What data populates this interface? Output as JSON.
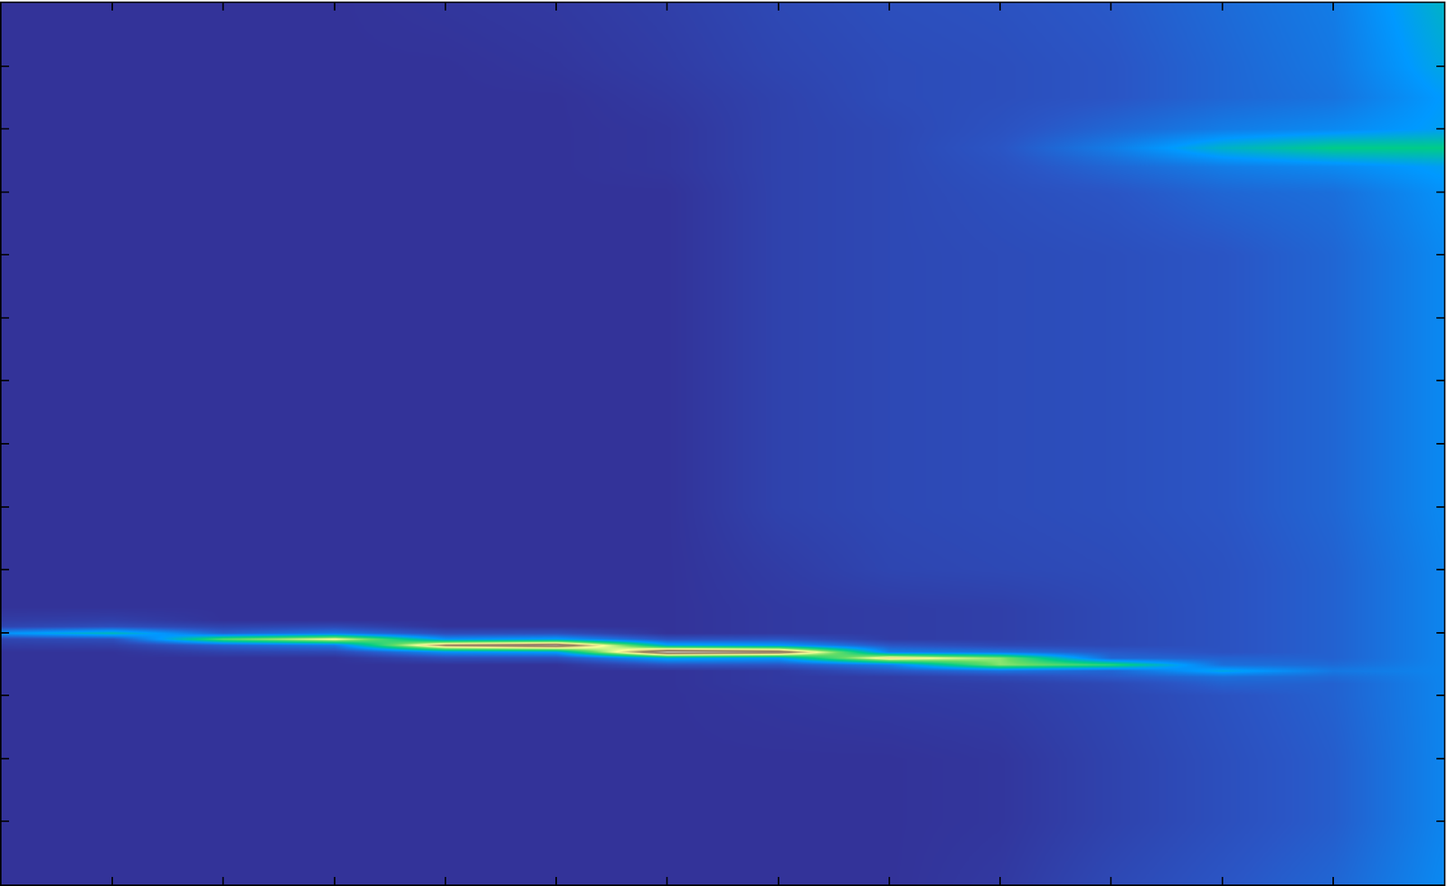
{
  "chart_data": {
    "type": "heatmap",
    "x": [
      0,
      1,
      2,
      3,
      4,
      5,
      6,
      7,
      8,
      9,
      10,
      11,
      12,
      13
    ],
    "y": [
      0,
      1,
      2,
      3,
      3.2,
      3.3,
      3.4,
      3.5,
      3.6,
      3.7,
      3.8,
      3.9,
      4.0,
      4.1,
      4.2,
      4.4,
      5,
      6,
      7,
      8,
      9,
      10,
      11,
      11.4,
      11.7,
      12,
      12.5,
      13,
      14
    ],
    "cells": [
      [
        0.05,
        0.05,
        0.05,
        0.05,
        0.05,
        0.05,
        0.05,
        0.05,
        0.05,
        0.07,
        0.12,
        0.16,
        0.2,
        0.28
      ],
      [
        0.05,
        0.05,
        0.05,
        0.05,
        0.05,
        0.05,
        0.05,
        0.05,
        0.05,
        0.06,
        0.1,
        0.14,
        0.18,
        0.27
      ],
      [
        0.05,
        0.05,
        0.05,
        0.05,
        0.05,
        0.05,
        0.05,
        0.05,
        0.05,
        0.06,
        0.1,
        0.14,
        0.18,
        0.27
      ],
      [
        0.05,
        0.05,
        0.05,
        0.05,
        0.05,
        0.05,
        0.05,
        0.06,
        0.07,
        0.08,
        0.11,
        0.15,
        0.19,
        0.27
      ],
      [
        0.05,
        0.05,
        0.05,
        0.05,
        0.05,
        0.05,
        0.05,
        0.07,
        0.08,
        0.09,
        0.12,
        0.19,
        0.19,
        0.27
      ],
      [
        0.05,
        0.05,
        0.05,
        0.05,
        0.05,
        0.05,
        0.05,
        0.07,
        0.08,
        0.12,
        0.17,
        0.22,
        0.21,
        0.27
      ],
      [
        0.05,
        0.05,
        0.05,
        0.05,
        0.05,
        0.05,
        0.05,
        0.07,
        0.16,
        0.23,
        0.2,
        0.35,
        0.24,
        0.27
      ],
      [
        0.05,
        0.05,
        0.05,
        0.05,
        0.05,
        0.05,
        0.15,
        0.16,
        0.26,
        0.6,
        0.5,
        0.22,
        0.21,
        0.27
      ],
      [
        0.05,
        0.05,
        0.05,
        0.05,
        0.13,
        0.14,
        0.35,
        0.32,
        0.75,
        0.6,
        0.2,
        0.19,
        0.19,
        0.27
      ],
      [
        0.05,
        0.05,
        0.1,
        0.12,
        0.3,
        0.33,
        1.0,
        0.92,
        0.26,
        0.23,
        0.17,
        0.15,
        0.19,
        0.27
      ],
      [
        0.08,
        0.09,
        0.19,
        0.25,
        0.85,
        0.95,
        0.35,
        0.32,
        0.16,
        0.12,
        0.12,
        0.15,
        0.19,
        0.27
      ],
      [
        0.11,
        0.14,
        0.55,
        0.7,
        0.3,
        0.33,
        0.15,
        0.16,
        0.08,
        0.09,
        0.12,
        0.15,
        0.19,
        0.27
      ],
      [
        0.3,
        0.4,
        0.19,
        0.25,
        0.13,
        0.14,
        0.05,
        0.07,
        0.08,
        0.09,
        0.12,
        0.15,
        0.19,
        0.27
      ],
      [
        0.11,
        0.14,
        0.1,
        0.12,
        0.05,
        0.05,
        0.05,
        0.07,
        0.08,
        0.09,
        0.12,
        0.15,
        0.19,
        0.27
      ],
      [
        0.08,
        0.09,
        0.05,
        0.05,
        0.05,
        0.05,
        0.05,
        0.07,
        0.08,
        0.09,
        0.12,
        0.15,
        0.19,
        0.27
      ],
      [
        0.05,
        0.05,
        0.05,
        0.05,
        0.05,
        0.05,
        0.05,
        0.07,
        0.08,
        0.09,
        0.12,
        0.15,
        0.19,
        0.27
      ],
      [
        0.05,
        0.05,
        0.05,
        0.05,
        0.05,
        0.05,
        0.05,
        0.08,
        0.11,
        0.12,
        0.13,
        0.15,
        0.19,
        0.27
      ],
      [
        0.05,
        0.05,
        0.05,
        0.05,
        0.05,
        0.05,
        0.05,
        0.1,
        0.12,
        0.13,
        0.14,
        0.16,
        0.2,
        0.28
      ],
      [
        0.05,
        0.05,
        0.05,
        0.05,
        0.05,
        0.05,
        0.05,
        0.1,
        0.12,
        0.13,
        0.14,
        0.16,
        0.2,
        0.28
      ],
      [
        0.05,
        0.05,
        0.05,
        0.05,
        0.05,
        0.05,
        0.05,
        0.1,
        0.12,
        0.13,
        0.14,
        0.16,
        0.2,
        0.28
      ],
      [
        0.05,
        0.05,
        0.05,
        0.05,
        0.05,
        0.05,
        0.05,
        0.1,
        0.12,
        0.13,
        0.14,
        0.16,
        0.2,
        0.28
      ],
      [
        0.05,
        0.05,
        0.05,
        0.05,
        0.05,
        0.05,
        0.05,
        0.1,
        0.12,
        0.13,
        0.14,
        0.16,
        0.2,
        0.28
      ],
      [
        0.05,
        0.05,
        0.05,
        0.05,
        0.05,
        0.05,
        0.05,
        0.1,
        0.12,
        0.14,
        0.16,
        0.2,
        0.22,
        0.3
      ],
      [
        0.05,
        0.05,
        0.05,
        0.05,
        0.05,
        0.05,
        0.06,
        0.1,
        0.12,
        0.15,
        0.2,
        0.25,
        0.28,
        0.33
      ],
      [
        0.05,
        0.05,
        0.05,
        0.05,
        0.05,
        0.05,
        0.06,
        0.1,
        0.12,
        0.16,
        0.25,
        0.38,
        0.45,
        0.45
      ],
      [
        0.05,
        0.05,
        0.05,
        0.05,
        0.05,
        0.05,
        0.06,
        0.1,
        0.12,
        0.15,
        0.2,
        0.25,
        0.28,
        0.33
      ],
      [
        0.05,
        0.05,
        0.05,
        0.05,
        0.05,
        0.05,
        0.07,
        0.1,
        0.13,
        0.14,
        0.16,
        0.2,
        0.23,
        0.32
      ],
      [
        0.05,
        0.05,
        0.05,
        0.05,
        0.05,
        0.06,
        0.08,
        0.11,
        0.13,
        0.14,
        0.16,
        0.2,
        0.24,
        0.35
      ],
      [
        0.05,
        0.05,
        0.05,
        0.05,
        0.06,
        0.07,
        0.09,
        0.12,
        0.14,
        0.15,
        0.17,
        0.21,
        0.25,
        0.38
      ]
    ],
    "xlim": [
      0,
      13
    ],
    "ylim": [
      0,
      14
    ],
    "xticks": [
      1,
      2,
      3,
      4,
      5,
      6,
      7,
      8,
      9,
      10,
      11,
      12
    ],
    "yticks": [
      1,
      2,
      3,
      4,
      5,
      6,
      7,
      8,
      9,
      10,
      11,
      12,
      13
    ],
    "tick_labels": false
  }
}
